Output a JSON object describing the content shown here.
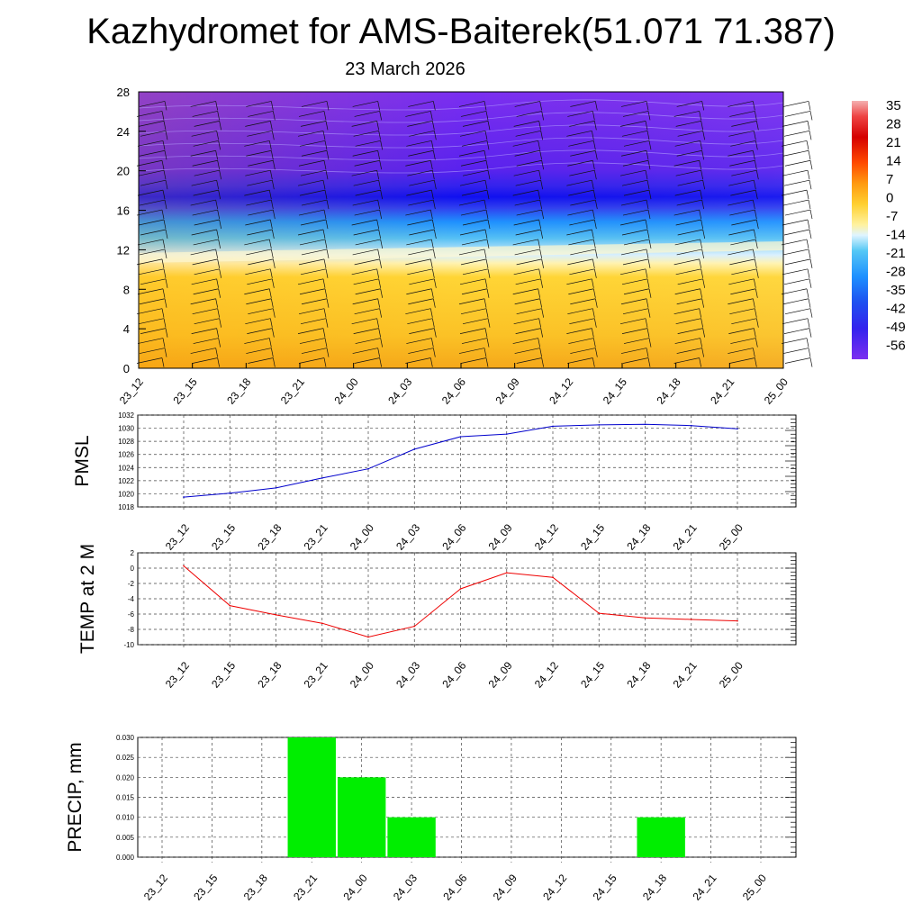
{
  "title": "Kazhydromet for AMS-Baiterek(51.071 71.387)",
  "subtitle": "23 March 2026",
  "time_labels": [
    "23_12",
    "23_15",
    "23_18",
    "23_21",
    "24_00",
    "24_03",
    "24_06",
    "24_09",
    "24_12",
    "24_15",
    "24_18",
    "24_21",
    "25_00"
  ],
  "colorbar_labels": [
    "35",
    "28",
    "21",
    "14",
    "7",
    "0",
    "-7",
    "-14",
    "-21",
    "-28",
    "-35",
    "-42",
    "-49",
    "-56"
  ],
  "colors": {
    "pmsl_line": "#0000cc",
    "temp_line": "#ee0000",
    "precip_bar": "#00ee00",
    "grid": "#444444"
  },
  "chart_data": [
    {
      "type": "heatmap",
      "name": "temperature-wind-profile",
      "title": "",
      "ylabel": "",
      "ylim": [
        0,
        28
      ],
      "yticks": [
        "0",
        "4",
        "8",
        "12",
        "16",
        "20",
        "24",
        "28"
      ],
      "colorbar_range": [
        -56,
        35
      ],
      "note": "filled temperature contours (deg C) with wind barbs by height level"
    },
    {
      "type": "line",
      "name": "pmsl",
      "ylabel": "PMSL",
      "ylim": [
        1018,
        1032
      ],
      "yticks": [
        "1018",
        "1020",
        "1022",
        "1024",
        "1026",
        "1028",
        "1030",
        "1032"
      ],
      "values": [
        1019.5,
        1020.1,
        1020.9,
        1022.4,
        1023.8,
        1026.8,
        1028.7,
        1029.1,
        1030.3,
        1030.5,
        1030.6,
        1030.4,
        1029.9
      ]
    },
    {
      "type": "line",
      "name": "temp2m",
      "ylabel": "TEMP at 2 M",
      "ylim": [
        -10,
        2
      ],
      "yticks": [
        "-10",
        "-8",
        "-6",
        "-4",
        "-2",
        "0",
        "2"
      ],
      "values": [
        0.3,
        -4.9,
        -6.1,
        -7.2,
        -9.0,
        -7.6,
        -2.7,
        -0.6,
        -1.2,
        -5.9,
        -6.5,
        -6.7,
        -6.9
      ]
    },
    {
      "type": "bar",
      "name": "precip",
      "ylabel": "PRECIP, mm",
      "ylim": [
        0,
        0.03
      ],
      "yticks": [
        "0.000",
        "0.005",
        "0.010",
        "0.015",
        "0.020",
        "0.025",
        "0.030"
      ],
      "values": [
        0,
        0,
        0,
        0.03,
        0.02,
        0.01,
        0,
        0,
        0,
        0,
        0.01,
        0,
        0
      ]
    }
  ]
}
